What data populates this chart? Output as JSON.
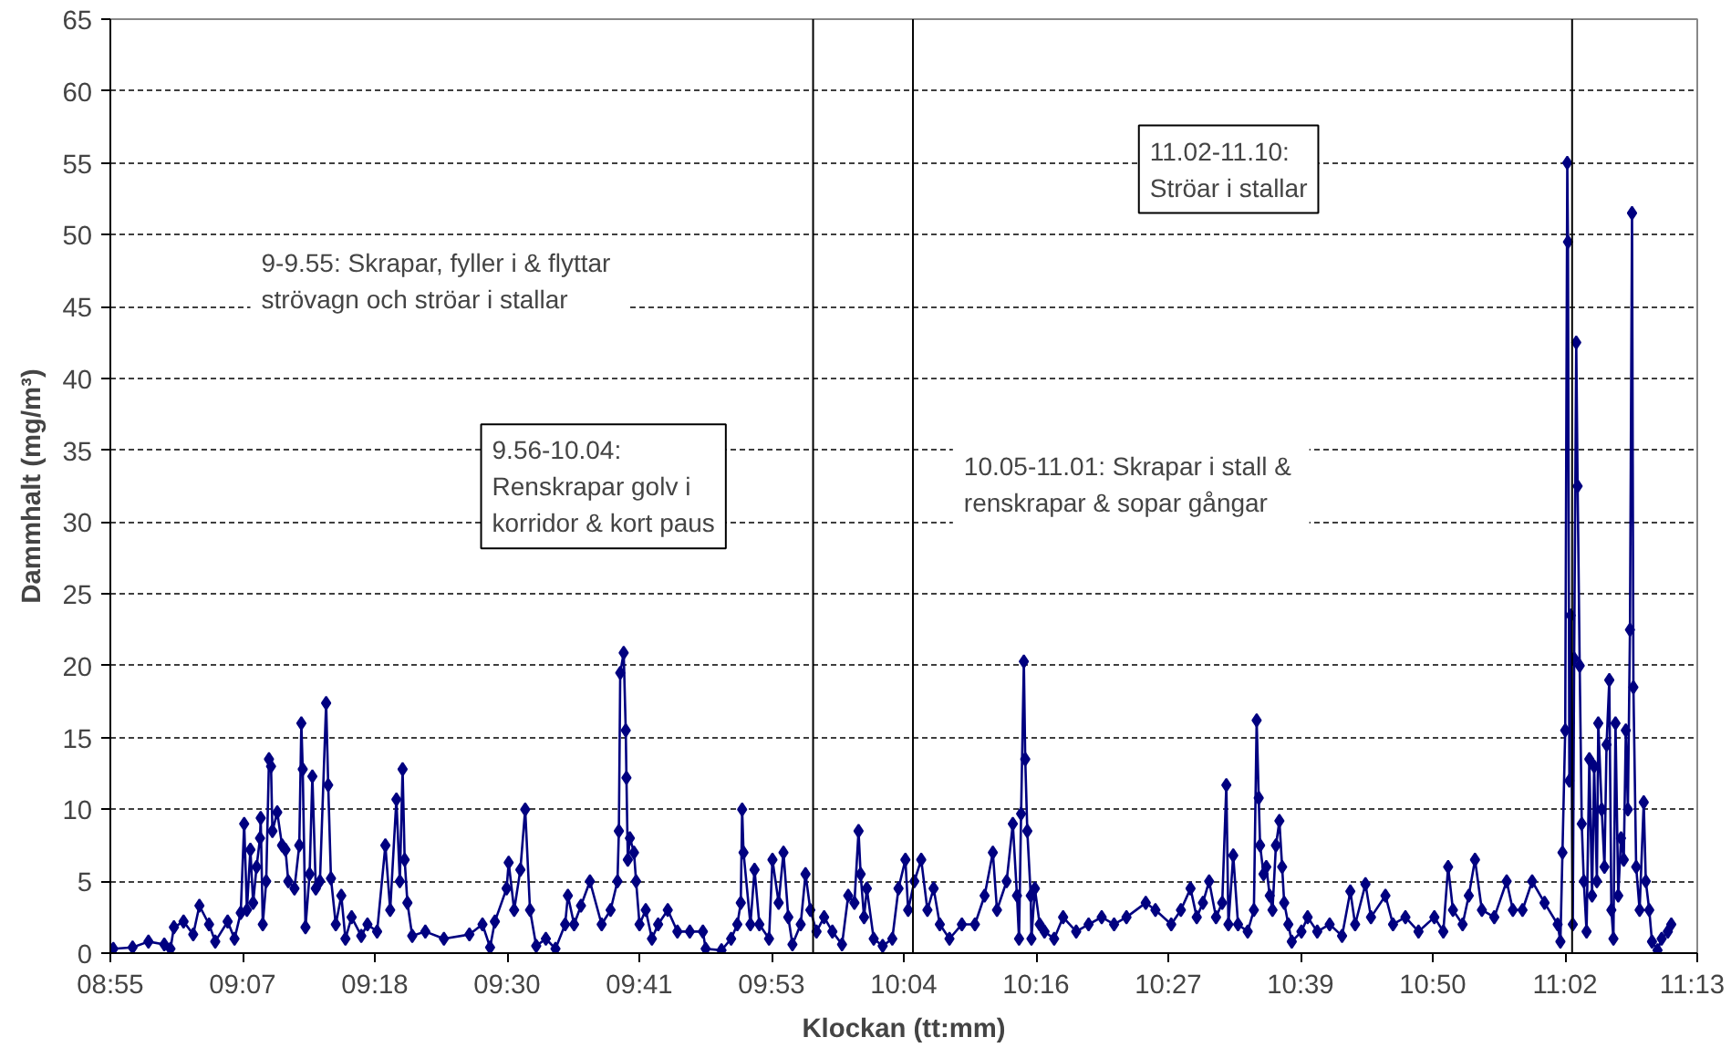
{
  "chart_data": {
    "type": "line",
    "xlabel": "Klockan (tt:mm)",
    "ylabel": "Dammhalt (mg/m³)",
    "xlim": [
      8.9167,
      11.2207
    ],
    "xticks": [
      {
        "value": 8.9167,
        "label": "08:55"
      },
      {
        "value": 9.1087,
        "label": "09:07"
      },
      {
        "value": 9.3007,
        "label": "09:18"
      },
      {
        "value": 9.4927,
        "label": "09:30"
      },
      {
        "value": 9.6847,
        "label": "09:41"
      },
      {
        "value": 9.8767,
        "label": "09:53"
      },
      {
        "value": 10.0687,
        "label": "10:04"
      },
      {
        "value": 10.2607,
        "label": "10:16"
      },
      {
        "value": 10.4527,
        "label": "10:27"
      },
      {
        "value": 10.6447,
        "label": "10:39"
      },
      {
        "value": 10.8367,
        "label": "10:50"
      },
      {
        "value": 11.0287,
        "label": "11:02"
      },
      {
        "value": 11.2207,
        "label": "11:13"
      }
    ],
    "ylim": [
      0,
      65
    ],
    "yticks": [
      0,
      5,
      10,
      15,
      20,
      25,
      30,
      35,
      40,
      45,
      50,
      55,
      60,
      65
    ],
    "grid": "y",
    "marker": "diamond",
    "line_style": "solid",
    "series": [
      {
        "color": "#000080",
        "x": [
          8.921,
          8.949,
          8.972,
          8.995,
          9.004,
          9.009,
          9.023,
          9.037,
          9.046,
          9.06,
          9.069,
          9.087,
          9.097,
          9.106,
          9.111,
          9.115,
          9.12,
          9.124,
          9.129,
          9.134,
          9.135,
          9.138,
          9.143,
          9.147,
          9.15,
          9.152,
          9.159,
          9.166,
          9.171,
          9.175,
          9.184,
          9.191,
          9.194,
          9.196,
          9.2,
          9.206,
          9.21,
          9.215,
          9.221,
          9.23,
          9.233,
          9.237,
          9.244,
          9.252,
          9.258,
          9.267,
          9.281,
          9.29,
          9.304,
          9.316,
          9.323,
          9.332,
          9.337,
          9.341,
          9.344,
          9.348,
          9.355,
          9.374,
          9.401,
          9.438,
          9.457,
          9.468,
          9.475,
          9.492,
          9.495,
          9.503,
          9.512,
          9.519,
          9.526,
          9.535,
          9.549,
          9.563,
          9.577,
          9.581,
          9.59,
          9.6,
          9.613,
          9.63,
          9.643,
          9.653,
          9.655,
          9.657,
          9.662,
          9.665,
          9.666,
          9.668,
          9.671,
          9.677,
          9.68,
          9.685,
          9.694,
          9.703,
          9.712,
          9.726,
          9.74,
          9.758,
          9.777,
          9.781,
          9.804,
          9.818,
          9.827,
          9.832,
          9.834,
          9.836,
          9.846,
          9.852,
          9.859,
          9.873,
          9.878,
          9.887,
          9.894,
          9.901,
          9.907,
          9.919,
          9.926,
          9.933,
          9.942,
          9.953,
          9.965,
          9.979,
          9.988,
          9.997,
          10.003,
          10.006,
          10.011,
          10.015,
          10.025,
          10.038,
          10.052,
          10.061,
          10.071,
          10.075,
          10.084,
          10.094,
          10.103,
          10.112,
          10.121,
          10.135,
          10.153,
          10.172,
          10.186,
          10.198,
          10.204,
          10.218,
          10.227,
          10.233,
          10.236,
          10.239,
          10.243,
          10.245,
          10.248,
          10.253,
          10.254,
          10.259,
          10.266,
          10.273,
          10.287,
          10.3,
          10.319,
          10.337,
          10.356,
          10.374,
          10.392,
          10.42,
          10.434,
          10.457,
          10.471,
          10.485,
          10.494,
          10.503,
          10.512,
          10.522,
          10.531,
          10.537,
          10.54,
          10.547,
          10.554,
          10.568,
          10.577,
          10.581,
          10.584,
          10.586,
          10.591,
          10.595,
          10.6,
          10.604,
          10.609,
          10.614,
          10.618,
          10.621,
          10.627,
          10.632,
          10.646,
          10.655,
          10.669,
          10.687,
          10.705,
          10.717,
          10.724,
          10.739,
          10.747,
          10.768,
          10.779,
          10.797,
          10.816,
          10.839,
          10.852,
          10.859,
          10.866,
          10.88,
          10.889,
          10.898,
          10.908,
          10.926,
          10.944,
          10.953,
          10.967,
          10.981,
          10.999,
          11.018,
          11.022,
          11.025,
          11.029,
          11.032,
          11.033,
          11.035,
          11.037,
          11.04,
          11.042,
          11.045,
          11.047,
          11.05,
          11.053,
          11.056,
          11.06,
          11.064,
          11.068,
          11.071,
          11.075,
          11.077,
          11.082,
          11.086,
          11.089,
          11.093,
          11.096,
          11.099,
          11.102,
          11.106,
          11.11,
          11.114,
          11.117,
          11.12,
          11.123,
          11.126,
          11.128,
          11.132,
          11.137,
          11.143,
          11.146,
          11.151,
          11.155,
          11.163,
          11.169,
          11.178,
          11.183
        ],
        "values": [
          0.3,
          0.4,
          0.8,
          0.6,
          0.3,
          1.8,
          2.2,
          1.3,
          3.3,
          2.0,
          0.8,
          2.2,
          1.0,
          2.8,
          9.0,
          3.0,
          7.2,
          3.5,
          6.0,
          8.0,
          9.4,
          2.0,
          5.0,
          13.5,
          13.0,
          8.5,
          9.8,
          7.5,
          7.2,
          5.0,
          4.5,
          7.5,
          16.0,
          12.8,
          1.8,
          5.5,
          12.3,
          4.5,
          5.0,
          17.4,
          11.7,
          5.2,
          2.0,
          4.0,
          1.0,
          2.5,
          1.2,
          2.0,
          1.5,
          7.5,
          3.0,
          10.7,
          5.0,
          12.8,
          6.5,
          3.5,
          1.2,
          1.5,
          1.0,
          1.3,
          2.0,
          0.4,
          2.2,
          4.5,
          6.3,
          3.0,
          5.8,
          10.0,
          3.0,
          0.5,
          1.0,
          0.3,
          2.0,
          4.0,
          2.0,
          3.3,
          5.0,
          2.0,
          3.0,
          5.0,
          8.5,
          19.5,
          20.9,
          15.5,
          12.2,
          6.5,
          8.0,
          7.0,
          5.0,
          2.0,
          3.0,
          1.0,
          2.0,
          3.0,
          1.5,
          1.5,
          1.5,
          0.3,
          0.2,
          1.0,
          2.0,
          3.5,
          10.0,
          7.0,
          2.0,
          5.8,
          2.0,
          1.0,
          6.5,
          3.5,
          7.0,
          2.5,
          0.6,
          2.0,
          5.5,
          3.0,
          1.5,
          2.5,
          1.5,
          0.6,
          4.0,
          3.5,
          8.5,
          5.5,
          2.5,
          4.5,
          1.0,
          0.5,
          1.0,
          4.5,
          6.5,
          3.0,
          5.0,
          6.5,
          3.0,
          4.5,
          2.0,
          1.0,
          2.0,
          2.0,
          4.0,
          7.0,
          3.0,
          5.0,
          9.0,
          4.0,
          1.0,
          9.7,
          20.3,
          13.5,
          8.5,
          4.0,
          1.0,
          4.5,
          2.0,
          1.5,
          1.0,
          2.5,
          1.5,
          2.0,
          2.5,
          2.0,
          2.5,
          3.5,
          3.0,
          2.0,
          3.0,
          4.5,
          2.5,
          3.5,
          5.0,
          2.5,
          3.5,
          11.7,
          2.0,
          6.8,
          2.0,
          1.5,
          3.0,
          16.2,
          10.8,
          7.5,
          5.5,
          6.0,
          4.0,
          3.0,
          7.5,
          9.2,
          6.0,
          3.5,
          2.0,
          0.8,
          1.5,
          2.5,
          1.5,
          2.0,
          1.2,
          4.3,
          2.0,
          4.8,
          2.5,
          4.0,
          2.0,
          2.5,
          1.5,
          2.5,
          1.5,
          6.0,
          3.0,
          2.0,
          4.0,
          6.5,
          3.0,
          2.5,
          5.0,
          3.0,
          3.0,
          5.0,
          3.5,
          2.0,
          0.8,
          7.0,
          15.5,
          55.0,
          49.5,
          12.0,
          23.5,
          2.0,
          20.5,
          42.5,
          32.5,
          20.0,
          9.0,
          5.0,
          1.5,
          13.5,
          4.0,
          13.0,
          5.0,
          16.0,
          10.0,
          6.0,
          14.5,
          19.0,
          3.0,
          1.0,
          16.0,
          4.0,
          8.0,
          6.5,
          15.5,
          10.0,
          22.5,
          51.5,
          18.5,
          6.0,
          3.0,
          10.5,
          5.0,
          3.0,
          0.8,
          0.2,
          1.0,
          1.5,
          2.0
        ]
      }
    ],
    "ref_lines": [
      {
        "axis": "x",
        "value": 9.937
      },
      {
        "axis": "x",
        "value": 10.082
      },
      {
        "axis": "x",
        "value": 11.039
      }
    ],
    "annotations": [
      "9-9.55: Skrapar, fyller  i & flyttar\nströvagn och ströar i stallar",
      "9.56-10.04:\nRenskrapar golv i\nkorridor & kort paus",
      "10.05-11.01: Skrapar  i stall &\nrenskrapar & sopar gångar",
      "11.02-11.10:\nStröar i stallar"
    ]
  }
}
